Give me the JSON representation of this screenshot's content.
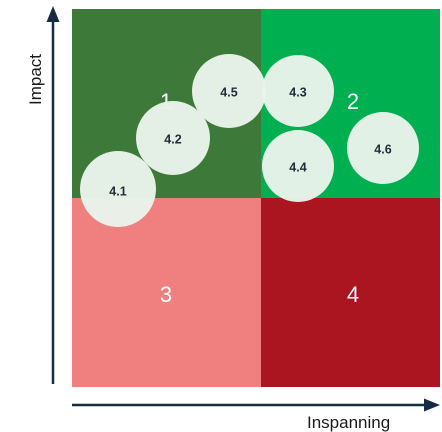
{
  "colors": {
    "quadrant_1": "#3d7a3a",
    "quadrant_2": "#00b050",
    "quadrant_3": "#f08080",
    "quadrant_4": "#ab151f",
    "bubble_fill": "#e9f3ea",
    "axis": "#172b42"
  },
  "axes": {
    "y_label": "Impact",
    "x_label": "Inspanning"
  },
  "quadrants": [
    {
      "id": "q1",
      "label": "1"
    },
    {
      "id": "q2",
      "label": "2"
    },
    {
      "id": "q3",
      "label": "3"
    },
    {
      "id": "q4",
      "label": "4"
    }
  ],
  "bubbles": [
    {
      "id": "b41",
      "label": "4.1"
    },
    {
      "id": "b42",
      "label": "4.2"
    },
    {
      "id": "b45",
      "label": "4.5"
    },
    {
      "id": "b43",
      "label": "4.3"
    },
    {
      "id": "b44",
      "label": "4.4"
    },
    {
      "id": "b46",
      "label": "4.6"
    }
  ]
}
